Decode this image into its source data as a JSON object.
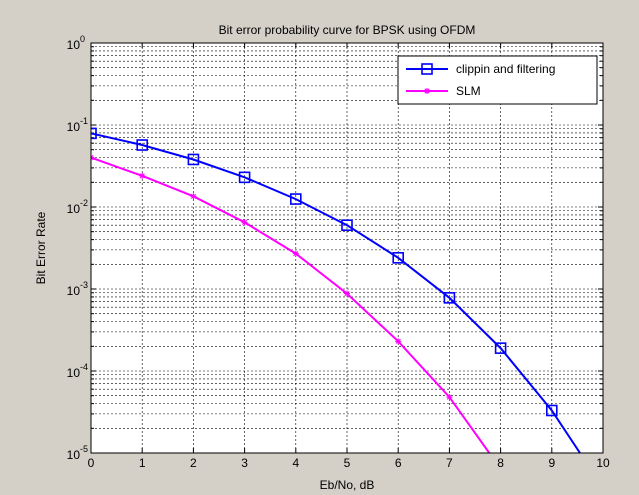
{
  "chart_data": {
    "type": "line",
    "title": "Bit error probability curve for BPSK using OFDM",
    "xlabel": "Eb/No, dB",
    "ylabel": "Bit Error Rate",
    "xlim": [
      0,
      10
    ],
    "ylim": [
      1e-05,
      1
    ],
    "yscale": "log",
    "grid": true,
    "legend_position": "top-right",
    "x_ticks": [
      "0",
      "1",
      "2",
      "3",
      "4",
      "5",
      "6",
      "7",
      "8",
      "9",
      "10"
    ],
    "y_tick_mantissa": "10",
    "y_tick_exponents": [
      "0",
      "-1",
      "-2",
      "-3",
      "-4",
      "-5"
    ],
    "series": [
      {
        "name": "clippin and filtering",
        "color": "#0000ff",
        "marker": "square",
        "x": [
          0,
          1,
          2,
          3,
          4,
          5,
          6,
          7,
          8,
          9,
          9.55
        ],
        "y": [
          0.079,
          0.057,
          0.038,
          0.023,
          0.0125,
          0.006,
          0.0024,
          0.00078,
          0.00019,
          3.3e-05,
          1e-05
        ]
      },
      {
        "name": "SLM",
        "color": "#ff00ff",
        "marker": "star",
        "x": [
          0,
          1,
          2,
          3,
          4,
          5,
          6,
          7,
          7.78
        ],
        "y": [
          0.04,
          0.024,
          0.0135,
          0.0065,
          0.0027,
          0.00088,
          0.00023,
          4.8e-05,
          1e-05
        ]
      }
    ]
  }
}
